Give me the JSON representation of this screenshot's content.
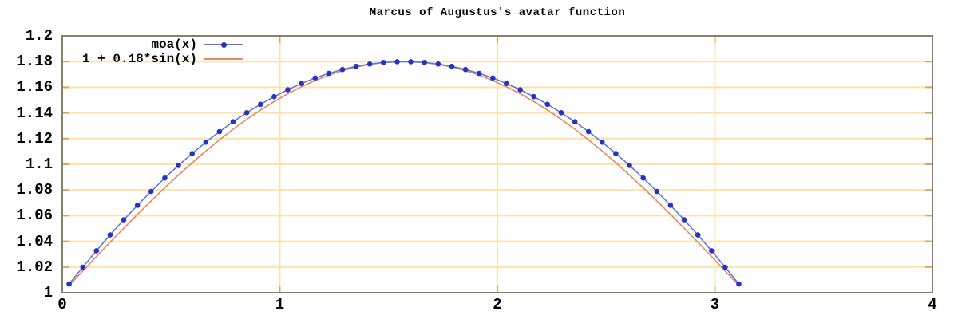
{
  "title": "Marcus of Augustus's avatar function",
  "legend": {
    "position": "top-left",
    "entries": [
      {
        "label": "moa(x)"
      },
      {
        "label": "1 + 0.18*sin(x)"
      }
    ]
  },
  "colors": {
    "background": "#ffffff",
    "text": "#000000",
    "grid": "#ffe0a8",
    "tick_stub": "#dda45e",
    "border": "#8a8164",
    "moa_line": "#5c79dd",
    "moa_point": "#2433c4",
    "sin_line": "#e8875f"
  },
  "chart_data": {
    "type": "line",
    "title": "Marcus of Augustus's avatar function",
    "xlabel": "",
    "ylabel": "",
    "xlim": [
      0,
      4
    ],
    "ylim": [
      1,
      1.2
    ],
    "grid": true,
    "legend_position": "top-left inside",
    "x_ticks": [
      {
        "value": 0,
        "label": "0"
      },
      {
        "value": 1,
        "label": "1"
      },
      {
        "value": 2,
        "label": "2"
      },
      {
        "value": 3,
        "label": "3"
      },
      {
        "value": 4,
        "label": "4"
      }
    ],
    "y_ticks": [
      {
        "value": 1.0,
        "label": "1"
      },
      {
        "value": 1.02,
        "label": "1.02"
      },
      {
        "value": 1.04,
        "label": "1.04"
      },
      {
        "value": 1.06,
        "label": "1.06"
      },
      {
        "value": 1.08,
        "label": "1.08"
      },
      {
        "value": 1.1,
        "label": "1.1"
      },
      {
        "value": 1.12,
        "label": "1.12"
      },
      {
        "value": 1.14,
        "label": "1.14"
      },
      {
        "value": 1.16,
        "label": "1.16"
      },
      {
        "value": 1.18,
        "label": "1.18"
      },
      {
        "value": 1.2,
        "label": "1.2"
      }
    ],
    "x": [
      0.0314,
      0.0942,
      0.1571,
      0.2199,
      0.2827,
      0.3456,
      0.4084,
      0.4712,
      0.5341,
      0.5969,
      0.6597,
      0.7226,
      0.7854,
      0.8482,
      0.9111,
      0.9739,
      1.0367,
      1.0996,
      1.1624,
      1.2252,
      1.2881,
      1.3509,
      1.4137,
      1.4765,
      1.5394,
      1.6022,
      1.665,
      1.7279,
      1.7907,
      1.8535,
      1.9164,
      1.9792,
      2.042,
      2.1049,
      2.1677,
      2.2305,
      2.2934,
      2.3562,
      2.419,
      2.4819,
      2.5447,
      2.6075,
      2.6704,
      2.7332,
      2.796,
      2.8588,
      2.9217,
      2.9845,
      3.0473,
      3.1102
    ],
    "series": [
      {
        "name": "moa(x)",
        "style": "linespoints",
        "values": [
          1.0068,
          1.0199,
          1.0327,
          1.045,
          1.0568,
          1.0681,
          1.0789,
          1.0893,
          1.0991,
          1.1084,
          1.1172,
          1.1254,
          1.1331,
          1.1402,
          1.1467,
          1.1527,
          1.1581,
          1.1629,
          1.1672,
          1.1708,
          1.1738,
          1.1763,
          1.1781,
          1.1793,
          1.1799,
          1.1799,
          1.1793,
          1.1781,
          1.1763,
          1.1738,
          1.1708,
          1.1672,
          1.1629,
          1.1581,
          1.1527,
          1.1467,
          1.1402,
          1.1331,
          1.1254,
          1.1172,
          1.1084,
          1.0991,
          1.0893,
          1.0789,
          1.0681,
          1.0568,
          1.045,
          1.0327,
          1.0199,
          1.0068
        ]
      },
      {
        "name": "1 + 0.18*sin(x)",
        "style": "lines",
        "values": [
          1.0057,
          1.0169,
          1.0282,
          1.0393,
          1.0502,
          1.061,
          1.0715,
          1.0817,
          1.0916,
          1.1012,
          1.1103,
          1.119,
          1.1273,
          1.135,
          1.1422,
          1.1489,
          1.1549,
          1.1604,
          1.1652,
          1.1694,
          1.1729,
          1.1757,
          1.1778,
          1.1792,
          1.1799,
          1.1799,
          1.1792,
          1.1778,
          1.1757,
          1.1729,
          1.1694,
          1.1652,
          1.1604,
          1.1549,
          1.1489,
          1.1422,
          1.135,
          1.1273,
          1.119,
          1.1103,
          1.1012,
          1.0916,
          1.0817,
          1.0715,
          1.061,
          1.0502,
          1.0393,
          1.0282,
          1.0169,
          1.0057
        ]
      }
    ]
  }
}
